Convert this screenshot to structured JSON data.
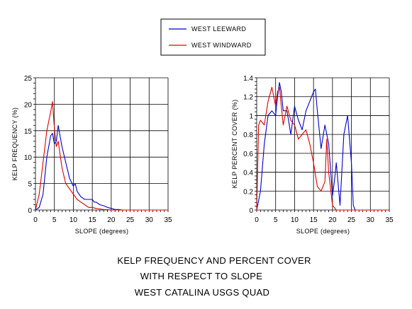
{
  "legend": [
    {
      "label": "WEST LEEWARD",
      "color": "#0000cc"
    },
    {
      "label": "WEST WINDWARD",
      "color": "#dd0000"
    }
  ],
  "caption": [
    "KELP FREQUENCY AND PERCENT COVER",
    "WITH RESPECT TO SLOPE",
    "WEST CATALINA USGS QUAD"
  ],
  "chart_data": [
    {
      "type": "line",
      "title": "",
      "xlabel": "SLOPE  (degrees)",
      "ylabel": "KELP  FREQUENCY  (%)",
      "xlim": [
        0,
        35
      ],
      "ylim": [
        0,
        25
      ],
      "xticks": [
        0,
        5,
        10,
        15,
        20,
        25,
        30,
        35
      ],
      "yticks": [
        0,
        5,
        10,
        15,
        20,
        25
      ],
      "grid": true,
      "series": [
        {
          "name": "WEST LEEWARD",
          "color": "#0000cc",
          "x": [
            0,
            1,
            2,
            3,
            4,
            4.5,
            5,
            5.5,
            6,
            6.5,
            7,
            8,
            9,
            10,
            10.5,
            11,
            12,
            13,
            14,
            15,
            15.5,
            16,
            17,
            18,
            19,
            20,
            21,
            22,
            23,
            24,
            25,
            26,
            27,
            28,
            29,
            30,
            31,
            32,
            33,
            34,
            35
          ],
          "y": [
            0,
            0.5,
            3,
            10,
            14,
            14.5,
            12.5,
            13,
            16,
            14,
            12,
            9,
            6,
            4.5,
            5,
            3.5,
            2.5,
            2,
            2,
            2,
            1.5,
            1.5,
            1,
            0.8,
            0.5,
            0.3,
            0.1,
            0.1,
            0,
            0,
            0,
            0,
            0,
            0,
            0,
            0,
            0,
            0,
            0,
            0,
            0
          ]
        },
        {
          "name": "WEST WINDWARD",
          "color": "#dd0000",
          "x": [
            0,
            1,
            2,
            3,
            4,
            4.5,
            5,
            5.5,
            6,
            7,
            8,
            9,
            10,
            11,
            12,
            13,
            14,
            15,
            16,
            17,
            18,
            19,
            20,
            21,
            22,
            23,
            24,
            25,
            26,
            27,
            28,
            29,
            30,
            31,
            32,
            33,
            34,
            35
          ],
          "y": [
            0,
            3,
            9,
            15,
            18.5,
            20.5,
            15.5,
            12,
            13,
            8,
            5,
            4,
            3,
            2,
            1.5,
            1,
            0.5,
            0.5,
            0.3,
            0.2,
            0.1,
            0.05,
            0,
            0,
            0,
            0,
            0,
            0,
            0,
            0,
            0,
            0,
            0,
            0,
            0,
            0,
            0,
            0
          ]
        }
      ]
    },
    {
      "type": "line",
      "title": "",
      "xlabel": "SLOPE  (degrees)",
      "ylabel": "KELP  PERCENT  COVER  (%)",
      "xlim": [
        0,
        35
      ],
      "ylim": [
        0,
        1.4
      ],
      "xticks": [
        0,
        5,
        10,
        15,
        20,
        25,
        30,
        35
      ],
      "yticks": [
        0,
        0.2,
        0.4,
        0.6,
        0.8,
        1,
        1.2,
        1.4
      ],
      "ytick_labels": [
        "0",
        "0.2",
        "0.4",
        "0.6",
        "0.8",
        "1",
        "1.2",
        "1.4"
      ],
      "grid": true,
      "series": [
        {
          "name": "WEST LEEWARD",
          "color": "#0000cc",
          "x": [
            0,
            1,
            2,
            3,
            4,
            5,
            5.5,
            6,
            6.5,
            7,
            8,
            9,
            10,
            11,
            12,
            13,
            14,
            15,
            15.5,
            16,
            17,
            18,
            19,
            20,
            20.5,
            21,
            22,
            23,
            24,
            25,
            25.5,
            26,
            27,
            28,
            29,
            30,
            31,
            32,
            33,
            34,
            35
          ],
          "y": [
            0,
            0.2,
            0.7,
            1.0,
            1.05,
            1.0,
            1.2,
            1.35,
            1.25,
            1.05,
            1.05,
            0.8,
            1.1,
            0.95,
            0.85,
            1.05,
            1.15,
            1.25,
            1.28,
            1.05,
            0.65,
            0.9,
            0.7,
            0.15,
            0.3,
            0.5,
            0.05,
            0.8,
            1.0,
            0.5,
            0.05,
            0,
            0,
            0,
            0,
            0,
            0,
            0,
            0,
            0,
            0
          ]
        },
        {
          "name": "WEST WINDWARD",
          "color": "#dd0000",
          "x": [
            0,
            0.5,
            1,
            2,
            3,
            4,
            5,
            5.5,
            6,
            6.5,
            7,
            8,
            9,
            10,
            11,
            12,
            13,
            14,
            15,
            16,
            17,
            18,
            18.5,
            19,
            20,
            21,
            22,
            23,
            24,
            25,
            26,
            27,
            28,
            29,
            30,
            31,
            32,
            33,
            34,
            35
          ],
          "y": [
            0,
            0.9,
            0.95,
            0.9,
            1.15,
            1.3,
            1.1,
            1.25,
            1.3,
            1.1,
            0.9,
            1.1,
            0.95,
            0.9,
            0.75,
            0.8,
            0.85,
            0.7,
            0.5,
            0.25,
            0.2,
            0.3,
            0.75,
            0.4,
            0.05,
            0,
            0,
            0,
            0,
            0,
            0,
            0,
            0,
            0,
            0,
            0,
            0,
            0,
            0,
            0
          ]
        }
      ]
    }
  ]
}
